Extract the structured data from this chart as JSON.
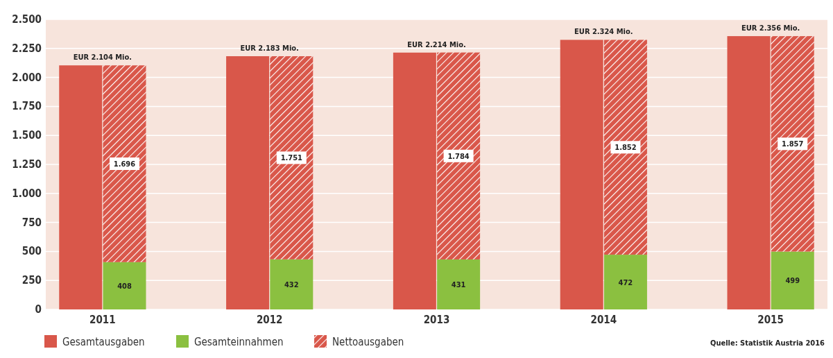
{
  "chart_data": [
    {
      "type": "bar",
      "categories": [
        "2011",
        "2012",
        "2013",
        "2014",
        "2015"
      ],
      "series": [
        {
          "name": "Gesamtausgaben",
          "color": "#d9574a",
          "values": [
            2104,
            2183,
            2214,
            2324,
            2356
          ]
        }
      ],
      "ylim": [
        0,
        2500
      ],
      "yticks": [
        {
          "value": 0,
          "label": "0"
        },
        {
          "value": 250,
          "label": "250"
        },
        {
          "value": 500,
          "label": "500"
        },
        {
          "value": 750,
          "label": "750"
        },
        {
          "value": 1000,
          "label": "1.000"
        },
        {
          "value": 1250,
          "label": "1.250"
        },
        {
          "value": 1500,
          "label": "1.500"
        },
        {
          "value": 1750,
          "label": "1.750"
        },
        {
          "value": 2000,
          "label": "2.000"
        },
        {
          "value": 2250,
          "label": "2.250"
        },
        {
          "value": 2500,
          "label": "2.500"
        }
      ],
      "grid": "y",
      "legend": "bottom",
      "annotations": [
        "Quelle: Statistik Austria 2016"
      ]
    },
    {
      "type": "bar",
      "stacked": true,
      "categories": [
        "2011",
        "2012",
        "2013",
        "2014",
        "2015"
      ],
      "series": [
        {
          "name": "Gesamteinnahmen",
          "color": "#8bc040",
          "values": [
            408,
            432,
            431,
            472,
            499
          ],
          "value_labels": [
            "408",
            "432",
            "431",
            "472",
            "499"
          ]
        },
        {
          "name": "Nettoausgaben",
          "color": "#d9574a",
          "values": [
            1696,
            1751,
            1784,
            1852,
            1857
          ],
          "value_labels": [
            "1.696",
            "1.751",
            "1.784",
            "1.852",
            "1.857"
          ]
        }
      ],
      "totals": [
        "EUR 2.104 Mio.",
        "EUR 2.183 Mio.",
        "EUR 2.214 Mio.",
        "EUR 2.324 Mio.",
        "EUR 2.356 Mio."
      ],
      "ylim": [
        0,
        2500
      ],
      "tick_labels": false,
      "legend": "bottom"
    }
  ]
}
